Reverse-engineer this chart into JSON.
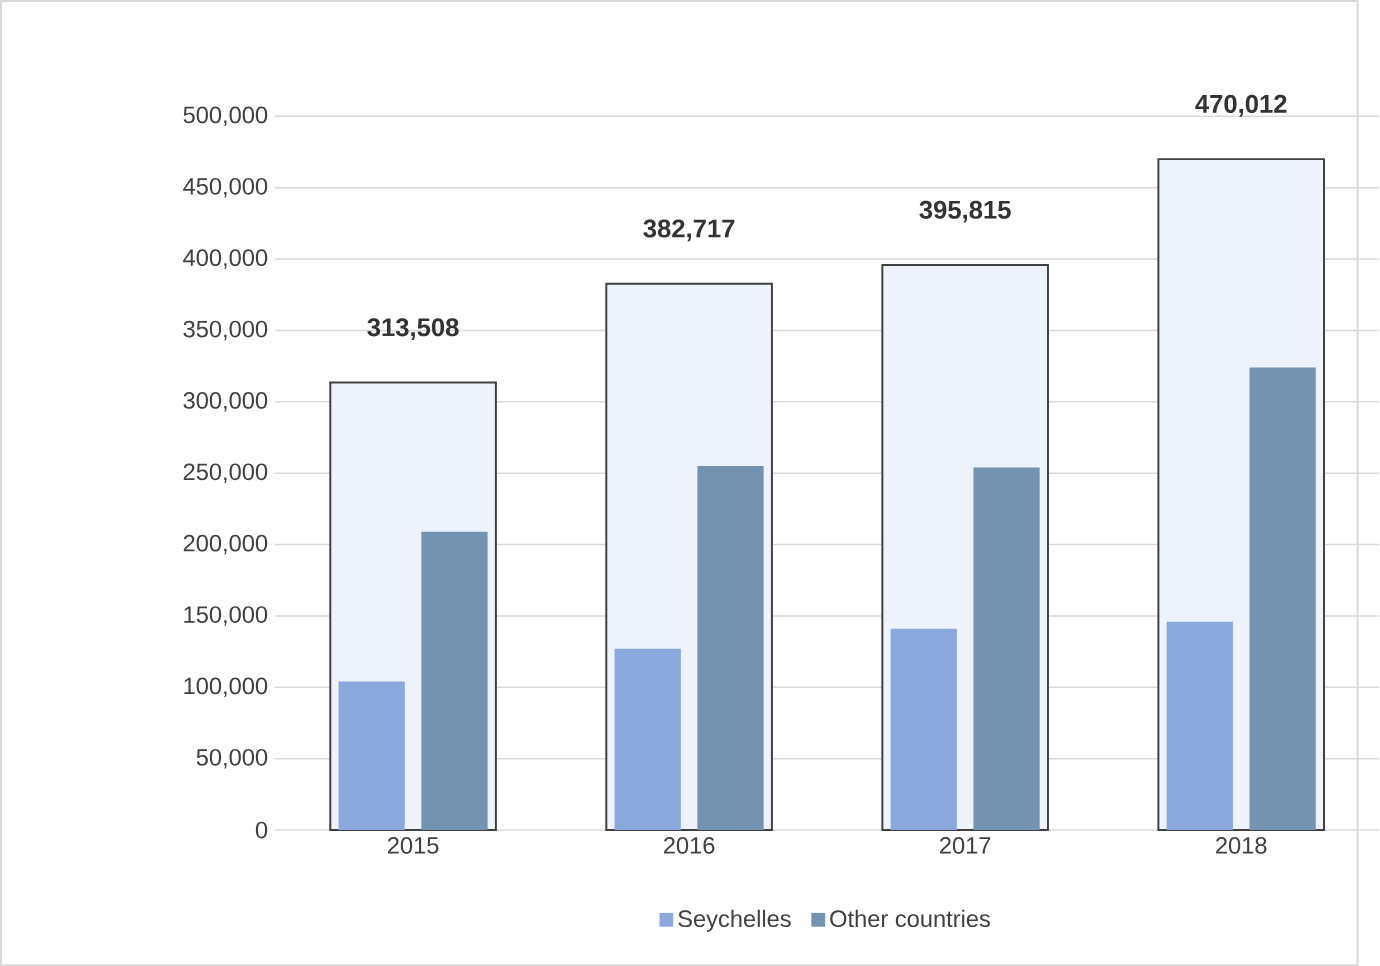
{
  "chart_data": {
    "type": "bar",
    "categories": [
      "2015",
      "2016",
      "2017",
      "2018"
    ],
    "series": [
      {
        "color": "#eef3fb",
        "values": [
          313508,
          382717,
          395815,
          470012
        ],
        "value_labels": [
          "313,508",
          "382,717",
          "395,815",
          "470,012"
        ]
      },
      {
        "name": "Seychelles",
        "color": "#8aa8dc",
        "values": [
          104000,
          127000,
          141000,
          146000
        ]
      },
      {
        "name": "Other countries",
        "color": "#7393b0",
        "values": [
          209000,
          255000,
          254000,
          324000
        ]
      }
    ],
    "ylim": [
      0,
      500000
    ],
    "yticks": [
      {
        "value": 0,
        "label": "0"
      },
      {
        "value": 50000,
        "label": "50,000"
      },
      {
        "value": 100000,
        "label": "100,000"
      },
      {
        "value": 150000,
        "label": "150,000"
      },
      {
        "value": 200000,
        "label": "200,000"
      },
      {
        "value": 250000,
        "label": "250,000"
      },
      {
        "value": 300000,
        "label": "300,000"
      },
      {
        "value": 350000,
        "label": "350,000"
      },
      {
        "value": 400000,
        "label": "400,000"
      },
      {
        "value": 450000,
        "label": "450,000"
      },
      {
        "value": 500000,
        "label": "500,000"
      }
    ],
    "grid": "y",
    "legend": "bottom"
  }
}
